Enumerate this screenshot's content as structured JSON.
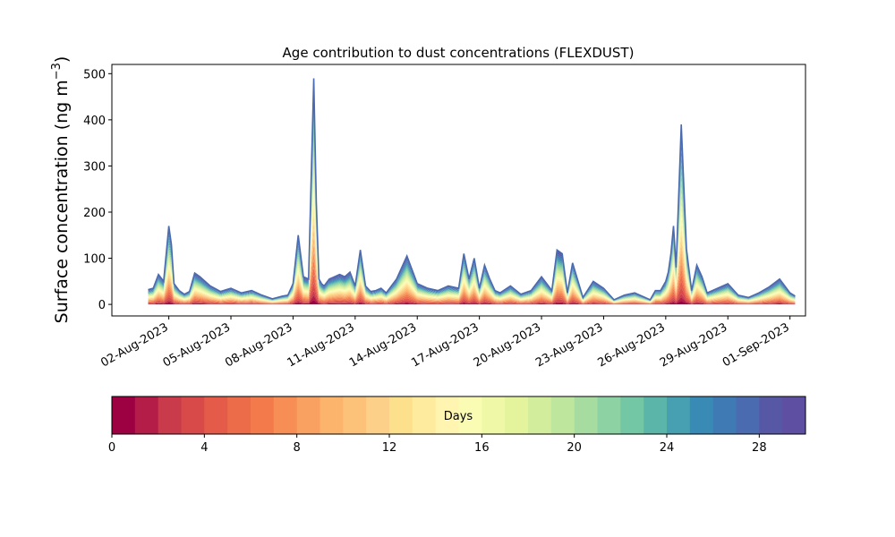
{
  "chart_data": {
    "type": "area",
    "title": "Age contribution to dust concentrations (FLEXDUST)",
    "ylabel_main": "Surface concentration (ng m",
    "ylabel_sup": "−3",
    "ylabel_close": ")",
    "xlabel": "",
    "ylim": [
      -25,
      520
    ],
    "y_ticks": [
      0,
      100,
      200,
      300,
      400,
      500
    ],
    "x_range": [
      "2023-07-30T06:00",
      "2023-09-01T18:00"
    ],
    "x_ticks": [
      "2023-08-02",
      "2023-08-05",
      "2023-08-08",
      "2023-08-11",
      "2023-08-14",
      "2023-08-17",
      "2023-08-20",
      "2023-08-23",
      "2023-08-26",
      "2023-08-29",
      "2023-09-01"
    ],
    "x_tick_labels": [
      "02-Aug-2023",
      "05-Aug-2023",
      "08-Aug-2023",
      "11-Aug-2023",
      "14-Aug-2023",
      "17-Aug-2023",
      "20-Aug-2023",
      "23-Aug-2023",
      "26-Aug-2023",
      "29-Aug-2023",
      "01-Sep-2023"
    ],
    "stacked_by": "age in days (0-30), one band per day, colormap Spectral",
    "total_series": {
      "dates": [
        "2023-08-01T00:00",
        "2023-08-01T06:00",
        "2023-08-01T12:00",
        "2023-08-01T18:00",
        "2023-08-02T00:00",
        "2023-08-02T03:00",
        "2023-08-02T06:00",
        "2023-08-02T12:00",
        "2023-08-02T18:00",
        "2023-08-03T00:00",
        "2023-08-03T06:00",
        "2023-08-03T12:00",
        "2023-08-04T00:00",
        "2023-08-04T12:00",
        "2023-08-05T00:00",
        "2023-08-05T12:00",
        "2023-08-06T00:00",
        "2023-08-06T12:00",
        "2023-08-07T00:00",
        "2023-08-07T12:00",
        "2023-08-07T18:00",
        "2023-08-08T00:00",
        "2023-08-08T06:00",
        "2023-08-08T12:00",
        "2023-08-08T18:00",
        "2023-08-09T00:00",
        "2023-08-09T03:00",
        "2023-08-09T06:00",
        "2023-08-09T09:00",
        "2023-08-09T12:00",
        "2023-08-09T18:00",
        "2023-08-10T00:00",
        "2023-08-10T06:00",
        "2023-08-10T12:00",
        "2023-08-10T18:00",
        "2023-08-11T00:00",
        "2023-08-11T06:00",
        "2023-08-11T12:00",
        "2023-08-11T18:00",
        "2023-08-12T00:00",
        "2023-08-12T06:00",
        "2023-08-12T12:00",
        "2023-08-13T00:00",
        "2023-08-13T12:00",
        "2023-08-14T00:00",
        "2023-08-14T12:00",
        "2023-08-15T00:00",
        "2023-08-15T12:00",
        "2023-08-16T00:00",
        "2023-08-16T06:00",
        "2023-08-16T12:00",
        "2023-08-16T18:00",
        "2023-08-17T00:00",
        "2023-08-17T06:00",
        "2023-08-17T12:00",
        "2023-08-17T18:00",
        "2023-08-18T00:00",
        "2023-08-18T12:00",
        "2023-08-19T00:00",
        "2023-08-19T12:00",
        "2023-08-20T00:00",
        "2023-08-20T06:00",
        "2023-08-20T12:00",
        "2023-08-20T18:00",
        "2023-08-21T00:00",
        "2023-08-21T06:00",
        "2023-08-21T12:00",
        "2023-08-22T00:00",
        "2023-08-22T12:00",
        "2023-08-23T00:00",
        "2023-08-23T12:00",
        "2023-08-24T00:00",
        "2023-08-24T12:00",
        "2023-08-25T00:00",
        "2023-08-25T06:00",
        "2023-08-25T12:00",
        "2023-08-25T18:00",
        "2023-08-26T00:00",
        "2023-08-26T03:00",
        "2023-08-26T06:00",
        "2023-08-26T09:00",
        "2023-08-26T12:00",
        "2023-08-26T18:00",
        "2023-08-27T00:00",
        "2023-08-27T06:00",
        "2023-08-27T12:00",
        "2023-08-27T18:00",
        "2023-08-28T00:00",
        "2023-08-28T12:00",
        "2023-08-29T00:00",
        "2023-08-29T12:00",
        "2023-08-30T00:00",
        "2023-08-30T12:00",
        "2023-08-31T00:00",
        "2023-08-31T12:00",
        "2023-09-01T00:00",
        "2023-09-01T06:00"
      ],
      "values": [
        32,
        35,
        65,
        50,
        170,
        130,
        45,
        30,
        22,
        28,
        68,
        60,
        40,
        28,
        35,
        25,
        30,
        20,
        12,
        18,
        20,
        45,
        150,
        60,
        55,
        490,
        220,
        55,
        45,
        40,
        55,
        60,
        65,
        60,
        70,
        40,
        118,
        40,
        28,
        30,
        35,
        25,
        55,
        105,
        45,
        35,
        30,
        40,
        35,
        110,
        55,
        100,
        35,
        85,
        55,
        30,
        25,
        40,
        22,
        30,
        60,
        45,
        30,
        118,
        110,
        25,
        90,
        15,
        50,
        35,
        10,
        20,
        25,
        15,
        10,
        30,
        30,
        50,
        70,
        110,
        170,
        80,
        390,
        120,
        30,
        85,
        60,
        25,
        35,
        45,
        20,
        15,
        25,
        38,
        55,
        25,
        18
      ]
    }
  },
  "colorbar": {
    "label": "Days",
    "min": 0,
    "max": 30,
    "ticks": [
      0,
      4,
      8,
      12,
      16,
      20,
      24,
      28
    ],
    "colors": [
      "#9e0142",
      "#b31d47",
      "#c93a4b",
      "#d84a4a",
      "#e45c49",
      "#ec6c4a",
      "#f37b4b",
      "#f68e56",
      "#f9a160",
      "#fcb46d",
      "#fdc27a",
      "#fdd08a",
      "#fde08b",
      "#feeb9e",
      "#fff4b0",
      "#fafcb4",
      "#eff8a6",
      "#e3f49c",
      "#d2ed9b",
      "#bfe69d",
      "#a6dca0",
      "#8dd2a3",
      "#73c7a5",
      "#5bb5a8",
      "#47a0b1",
      "#3a8ab6",
      "#3f7ab5",
      "#4a6bb0",
      "#5658a6",
      "#5e4fa2"
    ]
  }
}
